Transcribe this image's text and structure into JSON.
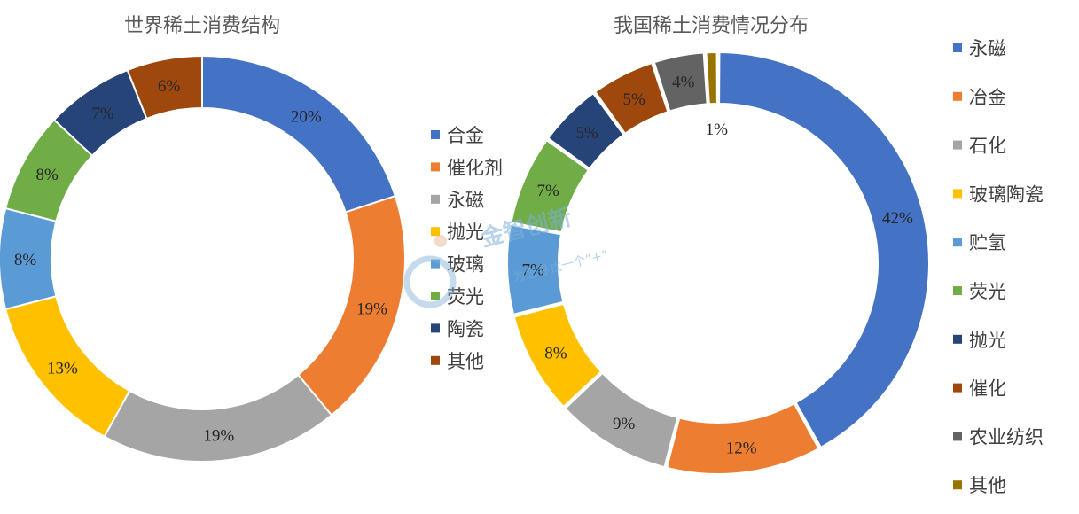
{
  "chart_data": [
    {
      "type": "pie",
      "donut": true,
      "title": "世界稀土消费结构",
      "categories": [
        "合金",
        "催化剂",
        "永磁",
        "抛光",
        "玻璃",
        "荧光",
        "陶瓷",
        "其他"
      ],
      "values": [
        20,
        19,
        19,
        13,
        8,
        8,
        7,
        6
      ],
      "labels": [
        "20%",
        "19%",
        "19%",
        "13%",
        "8%",
        "8%",
        "7%",
        "6%"
      ],
      "colors": [
        "#4472C4",
        "#ED7D31",
        "#A5A5A5",
        "#FFC000",
        "#5B9BD5",
        "#70AD47",
        "#264478",
        "#9E480E"
      ],
      "legend_position": "right"
    },
    {
      "type": "pie",
      "donut": true,
      "title": "我国稀土消费情况分布",
      "categories": [
        "永磁",
        "冶金",
        "石化",
        "玻璃陶瓷",
        "贮氢",
        "荧光",
        "抛光",
        "催化",
        "农业纺织",
        "其他"
      ],
      "values": [
        42,
        12,
        9,
        8,
        7,
        7,
        5,
        5,
        4,
        1
      ],
      "labels": [
        "42%",
        "12%",
        "9%",
        "8%",
        "7%",
        "7%",
        "5%",
        "5%",
        "4%",
        "1%"
      ],
      "colors": [
        "#4472C4",
        "#ED7D31",
        "#A5A5A5",
        "#FFC000",
        "#5B9BD5",
        "#70AD47",
        "#264478",
        "#9E480E",
        "#636363",
        "#997300"
      ],
      "legend_position": "right"
    }
  ],
  "watermark": {
    "text": "金智创新",
    "subtext": "为您寻找一个“+”"
  }
}
